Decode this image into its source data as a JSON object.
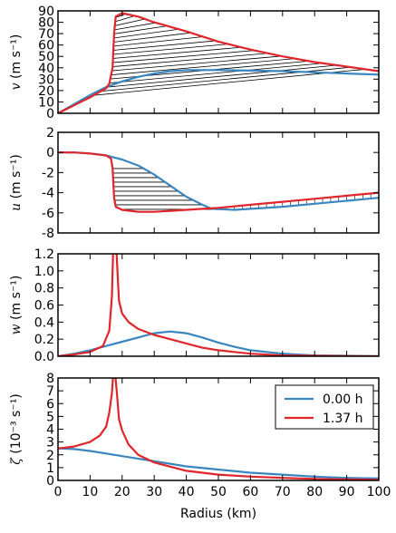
{
  "figure": {
    "xlabel": "Radius (km)",
    "x_tick_labels": [
      "0",
      "10",
      "20",
      "30",
      "40",
      "50",
      "60",
      "70",
      "80",
      "90",
      "100"
    ],
    "legend": {
      "entries": [
        {
          "label": "0.00 h",
          "color": "#3a86c0"
        },
        {
          "label": "1.37 h",
          "color": "#e0252b"
        }
      ],
      "placement": "upper-right of bottom panel"
    }
  },
  "chart_data": [
    {
      "type": "line",
      "id": "v",
      "ylabel_var": "v",
      "ylabel_units": "(m s⁻¹)",
      "xlim": [
        0,
        100
      ],
      "ylim": [
        0,
        90
      ],
      "y_tick_labels": [
        "0",
        "10",
        "20",
        "30",
        "40",
        "50",
        "60",
        "70",
        "80",
        "90"
      ],
      "hatched_between_series": true,
      "series": [
        {
          "name": "0.00 h",
          "color": "#3a86c0",
          "x": [
            0,
            5,
            10,
            15,
            20,
            25,
            30,
            35,
            40,
            50,
            60,
            70,
            80,
            90,
            100
          ],
          "y": [
            0,
            8,
            16,
            23,
            28,
            32,
            35,
            37,
            38,
            38,
            37.5,
            37,
            36,
            35,
            34
          ]
        },
        {
          "name": "1.37 h",
          "color": "#e0252b",
          "x": [
            0,
            5,
            10,
            15,
            16,
            17,
            17.5,
            18,
            20,
            25,
            30,
            40,
            50,
            60,
            70,
            80,
            90,
            100
          ],
          "y": [
            0,
            7,
            14,
            22,
            26,
            40,
            70,
            85,
            88,
            85,
            80,
            72,
            63,
            56,
            50,
            45,
            41,
            37
          ]
        }
      ]
    },
    {
      "type": "line",
      "id": "u",
      "ylabel_var": "u",
      "ylabel_units": "(m s⁻¹)",
      "xlim": [
        0,
        100
      ],
      "ylim": [
        -8,
        2
      ],
      "y_tick_labels": [
        "-8",
        "-6",
        "-4",
        "-2",
        "0",
        "2"
      ],
      "hatched_between_series": true,
      "series": [
        {
          "name": "0.00 h",
          "color": "#3a86c0",
          "x": [
            0,
            5,
            10,
            15,
            20,
            25,
            30,
            35,
            40,
            45,
            48,
            55,
            60,
            70,
            80,
            90,
            100
          ],
          "y": [
            0,
            0,
            -0.1,
            -0.3,
            -0.7,
            -1.3,
            -2.2,
            -3.3,
            -4.4,
            -5.2,
            -5.6,
            -5.7,
            -5.6,
            -5.4,
            -5.1,
            -4.8,
            -4.5
          ]
        },
        {
          "name": "1.37 h",
          "color": "#e0252b",
          "x": [
            0,
            5,
            10,
            15,
            16.5,
            17,
            17.5,
            18,
            20,
            25,
            30,
            35,
            40,
            45,
            50,
            60,
            70,
            80,
            90,
            100
          ],
          "y": [
            0,
            0,
            -0.1,
            -0.3,
            -0.6,
            -1.5,
            -4.5,
            -5.4,
            -5.7,
            -5.9,
            -5.9,
            -5.8,
            -5.7,
            -5.6,
            -5.5,
            -5.2,
            -4.9,
            -4.6,
            -4.3,
            -4.0
          ]
        }
      ]
    },
    {
      "type": "line",
      "id": "w",
      "ylabel_var": "w",
      "ylabel_units": "(m s⁻¹)",
      "xlim": [
        0,
        100
      ],
      "ylim": [
        0,
        1.2
      ],
      "y_tick_labels": [
        "0.0",
        "0.2",
        "0.4",
        "0.6",
        "0.8",
        "1.0",
        "1.2"
      ],
      "series": [
        {
          "name": "0.00 h",
          "color": "#3a86c0",
          "x": [
            0,
            5,
            10,
            15,
            20,
            25,
            30,
            35,
            40,
            45,
            50,
            55,
            60,
            70,
            80,
            90,
            100
          ],
          "y": [
            0,
            0.03,
            0.07,
            0.12,
            0.17,
            0.22,
            0.27,
            0.29,
            0.27,
            0.22,
            0.16,
            0.11,
            0.07,
            0.03,
            0.01,
            0.005,
            0
          ]
        },
        {
          "name": "1.37 h",
          "color": "#e0252b",
          "x": [
            0,
            5,
            10,
            14,
            16,
            16.8,
            17.2,
            17.5,
            17.8,
            18.2,
            19,
            20,
            22,
            25,
            30,
            35,
            40,
            45,
            50,
            60,
            70,
            80,
            90,
            100
          ],
          "y": [
            0,
            0.02,
            0.05,
            0.12,
            0.3,
            0.7,
            1.25,
            1.3,
            1.3,
            1.25,
            0.65,
            0.5,
            0.4,
            0.32,
            0.25,
            0.2,
            0.15,
            0.1,
            0.07,
            0.03,
            0.01,
            0.005,
            0.002,
            0
          ]
        }
      ]
    },
    {
      "type": "line",
      "id": "zeta",
      "ylabel_var": "ζ",
      "ylabel_units": "(10⁻³ s⁻¹)",
      "xlim": [
        0,
        100
      ],
      "ylim": [
        0,
        8
      ],
      "y_tick_labels": [
        "0",
        "1",
        "2",
        "3",
        "4",
        "5",
        "6",
        "7",
        "8"
      ],
      "series": [
        {
          "name": "0.00 h",
          "color": "#3a86c0",
          "x": [
            0,
            5,
            10,
            15,
            20,
            30,
            40,
            50,
            60,
            70,
            80,
            90,
            100
          ],
          "y": [
            2.5,
            2.45,
            2.3,
            2.1,
            1.9,
            1.5,
            1.1,
            0.85,
            0.6,
            0.45,
            0.3,
            0.2,
            0.15
          ]
        },
        {
          "name": "1.37 h",
          "color": "#e0252b",
          "x": [
            0,
            5,
            10,
            13,
            15,
            16,
            16.8,
            17.3,
            17.7,
            18.3,
            19,
            20,
            22,
            25,
            30,
            40,
            50,
            60,
            70,
            80,
            90,
            100
          ],
          "y": [
            2.5,
            2.65,
            3.0,
            3.5,
            4.2,
            5.3,
            6.8,
            8.6,
            8.6,
            7.0,
            4.8,
            3.9,
            2.8,
            2.0,
            1.4,
            0.75,
            0.45,
            0.3,
            0.2,
            0.12,
            0.08,
            0.05
          ]
        }
      ]
    }
  ]
}
